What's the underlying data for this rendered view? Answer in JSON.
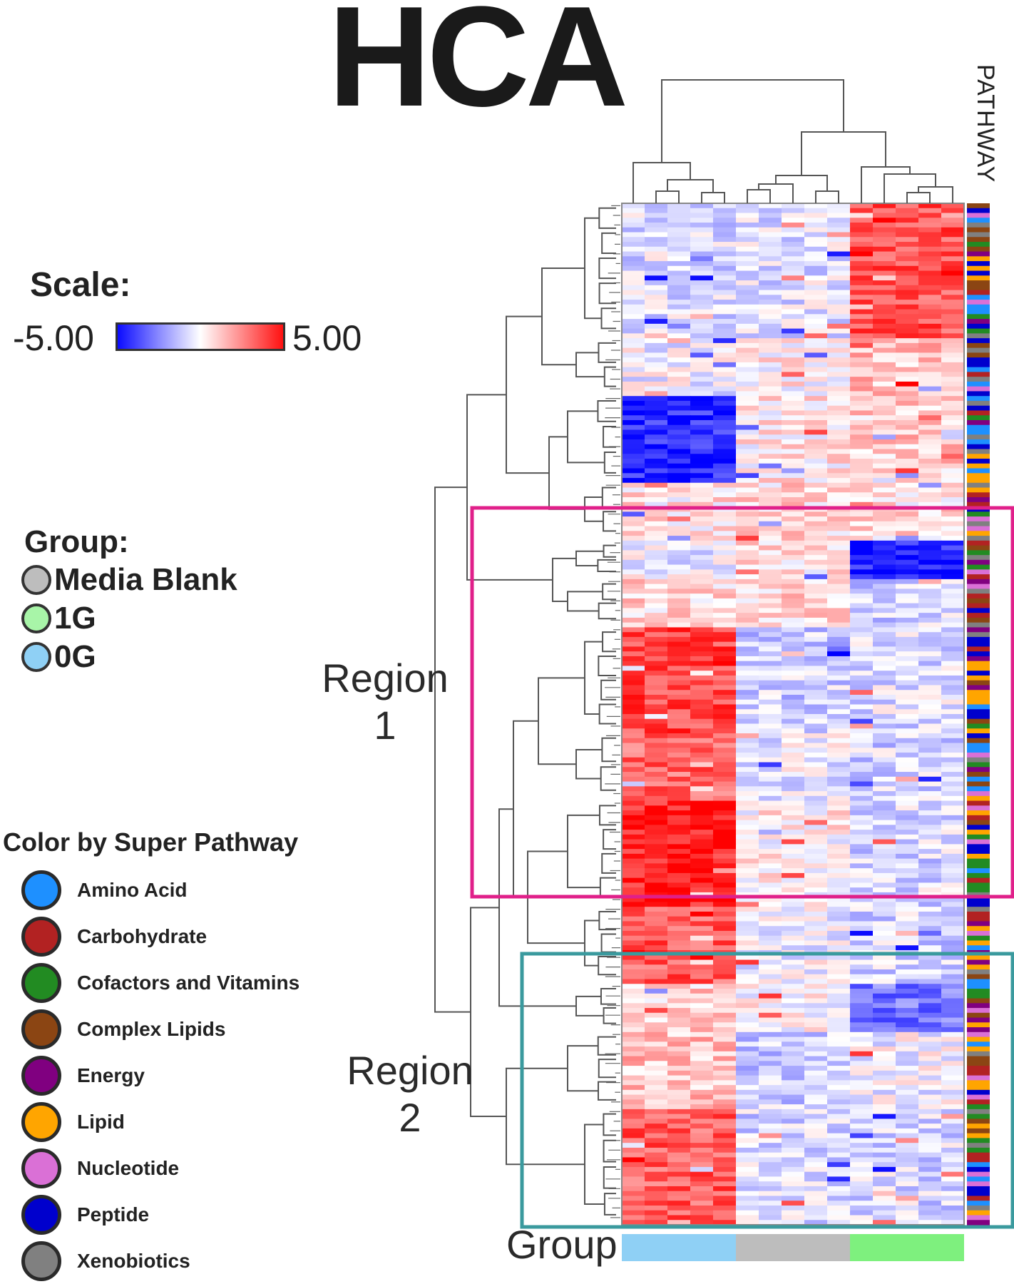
{
  "title": "HCA",
  "scale": {
    "title": "Scale:",
    "min_label": "-5.00",
    "max_label": "5.00",
    "colors": [
      "#0b0bff",
      "#ffffff",
      "#ff1010"
    ]
  },
  "group_legend": {
    "title": "Group:",
    "items": [
      {
        "label": "Media Blank",
        "color": "#bdbdbd"
      },
      {
        "label": "1G",
        "color": "#a8f5a8"
      },
      {
        "label": "0G",
        "color": "#8fd0f5"
      }
    ]
  },
  "pathway_legend": {
    "title": "Color by Super Pathway",
    "items": [
      {
        "label": "Amino Acid",
        "color": "#1e90ff"
      },
      {
        "label": "Carbohydrate",
        "color": "#b22222"
      },
      {
        "label": "Cofactors and Vitamins",
        "color": "#228b22"
      },
      {
        "label": "Complex Lipids",
        "color": "#8b4513"
      },
      {
        "label": "Energy",
        "color": "#800080"
      },
      {
        "label": "Lipid",
        "color": "#ffa500"
      },
      {
        "label": "Nucleotide",
        "color": "#da70d6"
      },
      {
        "label": "Peptide",
        "color": "#0000cd"
      },
      {
        "label": "Xenobiotics",
        "color": "#808080"
      }
    ]
  },
  "regions": [
    {
      "line1": "Region",
      "line2": "1",
      "color": "#e0208a"
    },
    {
      "line1": "Region",
      "line2": "2",
      "color": "#3a9a9e"
    }
  ],
  "group_bar": {
    "label": "Group",
    "segments": [
      {
        "group": "0G",
        "color": "#8fd0f5"
      },
      {
        "group": "Media Blank",
        "color": "#bdbdbd"
      },
      {
        "group": "1G",
        "color": "#7ef07e"
      }
    ]
  },
  "pathway_header": "PATHWAY",
  "chart_data": {
    "type": "heatmap",
    "title": "HCA",
    "value_range": [
      -5.0,
      5.0
    ],
    "column_groups": [
      "0G",
      "Media Blank",
      "1G"
    ],
    "row_blocks": [
      {
        "rows": 28,
        "values": [
          -0.6,
          -0.5,
          3.4
        ]
      },
      {
        "rows": 12,
        "values": [
          -0.2,
          0.3,
          1.2
        ]
      },
      {
        "rows": 18,
        "values": [
          -4.2,
          0.4,
          1.0
        ]
      },
      {
        "rows": 12,
        "values": [
          0.5,
          0.7,
          0.6
        ]
      },
      {
        "rows": 8,
        "values": [
          -0.3,
          0.6,
          -4.4
        ]
      },
      {
        "rows": 10,
        "values": [
          0.8,
          0.8,
          -0.8
        ]
      },
      {
        "rows": 22,
        "values": [
          3.6,
          -0.9,
          -0.6
        ]
      },
      {
        "rows": 14,
        "values": [
          3.0,
          -0.3,
          -0.8
        ]
      },
      {
        "rows": 22,
        "values": [
          4.4,
          0.3,
          -0.7
        ]
      },
      {
        "rows": 16,
        "values": [
          3.2,
          -0.2,
          -0.8
        ]
      },
      {
        "rows": 10,
        "values": [
          0.9,
          0.1,
          -2.8
        ]
      },
      {
        "rows": 16,
        "values": [
          1.2,
          -0.9,
          -0.2
        ]
      },
      {
        "rows": 24,
        "values": [
          3.2,
          -0.7,
          -0.7
        ]
      }
    ],
    "pathway_colors": [
      "#1e90ff",
      "#b22222",
      "#228b22",
      "#8b4513",
      "#800080",
      "#ffa500",
      "#da70d6",
      "#0000cd",
      "#808080"
    ]
  }
}
